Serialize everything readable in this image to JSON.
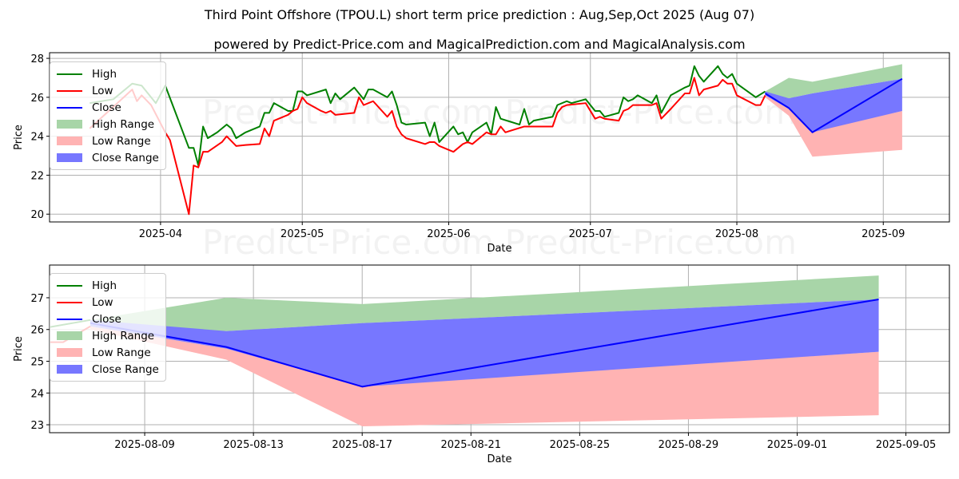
{
  "title": "Third Point Offshore (TPOU.L) short term price prediction : Aug,Sep,Oct 2025 (Aug 07)",
  "subtitle": "powered by Predict-Price.com and MagicalPrediction.com and MagicalAnalysis.com",
  "watermark": "Predict-Price.com",
  "colors": {
    "high": "#008000",
    "low": "#ff0000",
    "close": "#0000ff",
    "high_range": "#a8d5a8",
    "low_range": "#ffb3b3",
    "close_range": "#7777ff"
  },
  "legend": [
    "High",
    "Low",
    "Close",
    "High Range",
    "Low Range",
    "Close Range"
  ],
  "chart_data": [
    {
      "type": "line",
      "x_unit": "days since 2025-04-01",
      "xlabel": "Date",
      "ylabel": "Price",
      "xlim": [
        -23.5,
        167
      ],
      "ylim": [
        19.6,
        28.29
      ],
      "xticks": [
        {
          "v": 0,
          "label": "2025-04"
        },
        {
          "v": 30,
          "label": "2025-05"
        },
        {
          "v": 61,
          "label": "2025-06"
        },
        {
          "v": 91,
          "label": "2025-07"
        },
        {
          "v": 122,
          "label": "2025-08"
        },
        {
          "v": 153,
          "label": "2025-09"
        }
      ],
      "yticks": [
        20,
        22,
        24,
        26,
        28
      ],
      "grid": true,
      "legend_position": "top-left",
      "high": {
        "x": [
          -15,
          -10,
          -6,
          -4,
          -1,
          1,
          6,
          7,
          8,
          9,
          10,
          12,
          14,
          15,
          16,
          18,
          21,
          22,
          23,
          24,
          27,
          28,
          29,
          30,
          31,
          35,
          36,
          37,
          38,
          41,
          43,
          44,
          45,
          48,
          49,
          50,
          51,
          52,
          56,
          57,
          58,
          59,
          62,
          63,
          64,
          65,
          66,
          69,
          70,
          71,
          72,
          76,
          77,
          78,
          79,
          83,
          84,
          86,
          87,
          90,
          92,
          93,
          94,
          97,
          98,
          99,
          100,
          101,
          104,
          105,
          106,
          108,
          111,
          112,
          113,
          114,
          115,
          118,
          119,
          120,
          121,
          122,
          126,
          128
        ],
        "y": [
          25.7,
          25.9,
          26.7,
          26.6,
          25.7,
          26.6,
          23.4,
          23.4,
          22.5,
          24.5,
          23.9,
          24.2,
          24.6,
          24.4,
          23.9,
          24.2,
          24.5,
          25.2,
          25.2,
          25.7,
          25.3,
          25.3,
          26.3,
          26.3,
          26.1,
          26.4,
          25.7,
          26.2,
          25.9,
          26.5,
          25.9,
          26.4,
          26.4,
          26.0,
          26.3,
          25.6,
          24.7,
          24.6,
          24.7,
          24.0,
          24.7,
          23.7,
          24.5,
          24.1,
          24.2,
          23.7,
          24.2,
          24.7,
          24.1,
          25.5,
          24.9,
          24.6,
          25.4,
          24.6,
          24.8,
          25.0,
          25.6,
          25.8,
          25.7,
          25.9,
          25.3,
          25.3,
          25.0,
          25.2,
          26.0,
          25.8,
          25.9,
          26.1,
          25.7,
          26.1,
          25.2,
          26.1,
          26.5,
          26.6,
          27.6,
          27.1,
          26.8,
          27.6,
          27.2,
          27.0,
          27.2,
          26.7,
          26.0,
          26.3
        ]
      },
      "low": {
        "x": [
          -15,
          -6,
          -5,
          -4,
          -2,
          1,
          2,
          6,
          7,
          8,
          9,
          10,
          13,
          14,
          16,
          18,
          21,
          22,
          23,
          24,
          27,
          28,
          29,
          30,
          31,
          34,
          35,
          36,
          37,
          41,
          42,
          43,
          44,
          45,
          48,
          49,
          50,
          51,
          52,
          56,
          57,
          58,
          59,
          62,
          64,
          65,
          66,
          69,
          70,
          71,
          72,
          73,
          77,
          83,
          84,
          85,
          86,
          90,
          92,
          93,
          94,
          97,
          98,
          99,
          100,
          104,
          105,
          106,
          108,
          111,
          112,
          113,
          114,
          115,
          118,
          119,
          120,
          121,
          122,
          126,
          127,
          128
        ],
        "y": [
          24.4,
          26.4,
          25.8,
          26.1,
          25.6,
          24.2,
          23.8,
          20.0,
          22.5,
          22.4,
          23.2,
          23.2,
          23.7,
          24.0,
          23.5,
          23.55,
          23.6,
          24.4,
          24.0,
          24.8,
          25.1,
          25.3,
          25.4,
          26.0,
          25.7,
          25.3,
          25.2,
          25.3,
          25.1,
          25.2,
          26.0,
          25.6,
          25.7,
          25.8,
          25.0,
          25.3,
          24.5,
          24.1,
          23.9,
          23.6,
          23.7,
          23.7,
          23.5,
          23.2,
          23.6,
          23.7,
          23.6,
          24.2,
          24.1,
          24.1,
          24.5,
          24.2,
          24.5,
          24.5,
          25.2,
          25.5,
          25.6,
          25.7,
          24.9,
          25.0,
          24.9,
          24.8,
          25.3,
          25.4,
          25.6,
          25.6,
          25.7,
          24.9,
          25.4,
          26.2,
          26.2,
          27.0,
          26.1,
          26.4,
          26.6,
          26.9,
          26.7,
          26.7,
          26.1,
          25.6,
          25.6,
          26.1
        ]
      },
      "forecast": {
        "x": [
          128,
          133,
          138,
          157
        ],
        "close": [
          26.2,
          25.45,
          24.2,
          26.95
        ],
        "high_range": {
          "upper": [
            26.3,
            27.0,
            26.8,
            27.7
          ],
          "lower": [
            26.1,
            25.95,
            26.2,
            26.95
          ]
        },
        "low_range": {
          "upper": [
            26.1,
            25.4,
            24.25,
            25.3
          ],
          "lower": [
            26.0,
            25.05,
            22.95,
            23.3
          ]
        },
        "close_range": {
          "upper": [
            26.3,
            25.95,
            26.2,
            26.95
          ],
          "lower": [
            26.1,
            25.4,
            24.2,
            25.3
          ]
        }
      }
    },
    {
      "type": "line",
      "x_unit": "days since 2025-04-01",
      "xlabel": "Date",
      "ylabel": "Price",
      "xlim": [
        126.5,
        159.6
      ],
      "ylim": [
        22.75,
        28.03
      ],
      "xticks": [
        {
          "v": 130,
          "label": "2025-08-09"
        },
        {
          "v": 134,
          "label": "2025-08-13"
        },
        {
          "v": 138,
          "label": "2025-08-17"
        },
        {
          "v": 142,
          "label": "2025-08-21"
        },
        {
          "v": 146,
          "label": "2025-08-25"
        },
        {
          "v": 150,
          "label": "2025-08-29"
        },
        {
          "v": 154,
          "label": "2025-09-01"
        },
        {
          "v": 158,
          "label": "2025-09-05"
        }
      ],
      "yticks": [
        23,
        24,
        25,
        26,
        27
      ],
      "grid": true,
      "legend_position": "top-left"
    }
  ]
}
